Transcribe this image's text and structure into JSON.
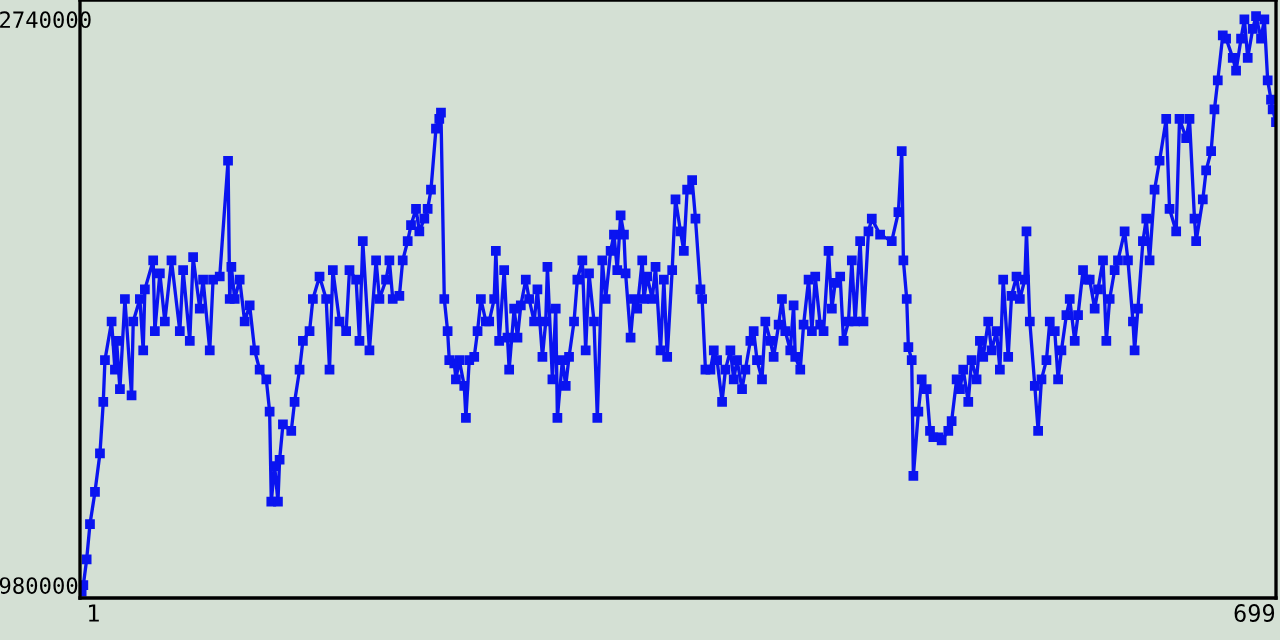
{
  "chart_data": {
    "type": "line",
    "marker": "square",
    "line_style": "solid",
    "grid": false,
    "legend": false,
    "xlim": [
      -7,
      712
    ],
    "xticks": [
      1,
      699
    ],
    "ylim": [
      940000,
      2800000
    ],
    "yticks": [
      980000,
      2740000
    ],
    "series": [
      {
        "color": "#0a14f0",
        "x": [
          -6,
          -5,
          -3,
          -1,
          2,
          5,
          7,
          8,
          12,
          14,
          15,
          17,
          20,
          24,
          25,
          29,
          31,
          32,
          37,
          38,
          41,
          44,
          48,
          53,
          55,
          59,
          61,
          65,
          67,
          71,
          73,
          77,
          82,
          83,
          84,
          86,
          89,
          92,
          95,
          98,
          101,
          105,
          107,
          108,
          110,
          112,
          113,
          115,
          120,
          122,
          125,
          127,
          131,
          133,
          137,
          141,
          143,
          145,
          149,
          153,
          155,
          159,
          161,
          163,
          167,
          171,
          173,
          177,
          179,
          181,
          185,
          187,
          190,
          192,
          195,
          197,
          200,
          202,
          204,
          207,
          209,
          210,
          212,
          214,
          215,
          218,
          219,
          221,
          224,
          225,
          227,
          230,
          232,
          234,
          237,
          239,
          242,
          243,
          245,
          248,
          250,
          251,
          254,
          256,
          258,
          261,
          263,
          266,
          268,
          271,
          273,
          274,
          277,
          279,
          280,
          283,
          285,
          287,
          290,
          292,
          295,
          297,
          299,
          302,
          304,
          307,
          309,
          312,
          314,
          316,
          318,
          320,
          321,
          324,
          326,
          328,
          331,
          332,
          334,
          337,
          339,
          342,
          344,
          346,
          349,
          351,
          354,
          356,
          358,
          361,
          363,
          366,
          367,
          369,
          372,
          374,
          376,
          379,
          381,
          384,
          386,
          388,
          391,
          393,
          396,
          398,
          400,
          403,
          405,
          408,
          410,
          413,
          415,
          417,
          420,
          422,
          423,
          426,
          428,
          431,
          433,
          435,
          438,
          440,
          443,
          445,
          447,
          450,
          452,
          455,
          457,
          459,
          462,
          464,
          467,
          469,
          474,
          481,
          485,
          487,
          488,
          490,
          491,
          493,
          494,
          497,
          499,
          502,
          504,
          506,
          509,
          511,
          515,
          517,
          520,
          522,
          524,
          527,
          529,
          532,
          534,
          536,
          539,
          541,
          544,
          546,
          548,
          551,
          553,
          556,
          558,
          561,
          562,
          564,
          567,
          569,
          571,
          574,
          576,
          579,
          581,
          583,
          586,
          588,
          591,
          593,
          596,
          598,
          600,
          603,
          605,
          608,
          610,
          612,
          615,
          617,
          621,
          623,
          626,
          627,
          629,
          632,
          634,
          636,
          639,
          642,
          646,
          648,
          652,
          654,
          658,
          660,
          663,
          664,
          668,
          670,
          673,
          675,
          677,
          680,
          682,
          686,
          688,
          691,
          693,
          695,
          698,
          700,
          703,
          705,
          707,
          709,
          710,
          712
        ],
        "values": [
          960000,
          980000,
          1060000,
          1170000,
          1270000,
          1390000,
          1550000,
          1680000,
          1800000,
          1650000,
          1740000,
          1590000,
          1870000,
          1570000,
          1800000,
          1870000,
          1710000,
          1900000,
          1990000,
          1770000,
          1950000,
          1800000,
          1990000,
          1770000,
          1960000,
          1740000,
          2000000,
          1840000,
          1930000,
          1710000,
          1930000,
          1940000,
          2300000,
          1870000,
          1970000,
          1870000,
          1930000,
          1800000,
          1850000,
          1710000,
          1650000,
          1620000,
          1520000,
          1240000,
          1350000,
          1240000,
          1370000,
          1480000,
          1460000,
          1550000,
          1650000,
          1740000,
          1770000,
          1870000,
          1940000,
          1870000,
          1650000,
          1960000,
          1800000,
          1770000,
          1960000,
          1930000,
          1740000,
          2050000,
          1710000,
          1990000,
          1870000,
          1930000,
          1990000,
          1870000,
          1880000,
          1990000,
          2050000,
          2100000,
          2150000,
          2080000,
          2120000,
          2150000,
          2210000,
          2400000,
          2430000,
          2450000,
          1870000,
          1770000,
          1680000,
          1670000,
          1620000,
          1680000,
          1600000,
          1500000,
          1680000,
          1690000,
          1770000,
          1870000,
          1800000,
          1800000,
          1870000,
          2020000,
          1740000,
          1960000,
          1750000,
          1650000,
          1840000,
          1750000,
          1850000,
          1930000,
          1870000,
          1800000,
          1900000,
          1690000,
          1800000,
          1970000,
          1620000,
          1840000,
          1500000,
          1680000,
          1600000,
          1690000,
          1800000,
          1930000,
          1990000,
          1710000,
          1950000,
          1800000,
          1500000,
          1990000,
          1870000,
          2020000,
          2070000,
          1960000,
          2130000,
          2070000,
          1950000,
          1750000,
          1870000,
          1840000,
          1990000,
          1870000,
          1940000,
          1870000,
          1970000,
          1710000,
          1930000,
          1690000,
          1960000,
          2180000,
          2080000,
          2020000,
          2210000,
          2240000,
          2120000,
          1900000,
          1870000,
          1650000,
          1650000,
          1710000,
          1680000,
          1550000,
          1650000,
          1710000,
          1620000,
          1680000,
          1590000,
          1650000,
          1740000,
          1770000,
          1680000,
          1620000,
          1800000,
          1740000,
          1690000,
          1790000,
          1870000,
          1770000,
          1710000,
          1850000,
          1690000,
          1650000,
          1790000,
          1930000,
          1770000,
          1940000,
          1790000,
          1770000,
          2020000,
          1840000,
          1920000,
          1940000,
          1740000,
          1800000,
          1990000,
          1800000,
          2050000,
          1800000,
          2080000,
          2120000,
          2070000,
          2050000,
          2140000,
          2330000,
          1990000,
          1870000,
          1720000,
          1680000,
          1320000,
          1520000,
          1620000,
          1590000,
          1460000,
          1440000,
          1440000,
          1430000,
          1460000,
          1490000,
          1620000,
          1590000,
          1650000,
          1550000,
          1680000,
          1620000,
          1740000,
          1690000,
          1800000,
          1710000,
          1770000,
          1650000,
          1930000,
          1690000,
          1880000,
          1940000,
          1870000,
          1930000,
          2080000,
          1800000,
          1600000,
          1460000,
          1620000,
          1680000,
          1800000,
          1770000,
          1620000,
          1710000,
          1820000,
          1870000,
          1740000,
          1820000,
          1960000,
          1930000,
          1930000,
          1840000,
          1900000,
          1990000,
          1740000,
          1870000,
          1960000,
          1990000,
          2080000,
          1990000,
          1800000,
          1710000,
          1840000,
          2050000,
          2120000,
          1990000,
          2210000,
          2300000,
          2430000,
          2150000,
          2080000,
          2430000,
          2370000,
          2430000,
          2120000,
          2050000,
          2180000,
          2270000,
          2330000,
          2460000,
          2550000,
          2690000,
          2680000,
          2620000,
          2580000,
          2680000,
          2740000,
          2620000,
          2710000,
          2750000,
          2680000,
          2740000,
          2550000,
          2490000,
          2460000,
          2420000
        ]
      }
    ]
  }
}
